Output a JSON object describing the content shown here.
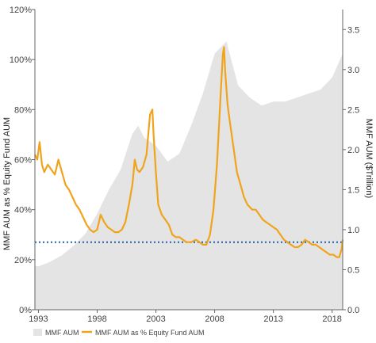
{
  "chart_data": {
    "type": "line",
    "title": "",
    "ylabel_left": "MMF AUM as % Equity Fund AUM",
    "ylabel_right": "MMF AUM ($Trillion)",
    "left_axis": {
      "ylim": [
        0,
        120
      ],
      "ticks": [
        0,
        20,
        40,
        60,
        80,
        100,
        120
      ],
      "tick_labels": [
        "0%",
        "20%",
        "40%",
        "60%",
        "80%",
        "100%",
        "120%"
      ]
    },
    "right_axis": {
      "ylim": [
        0,
        3.75
      ],
      "ticks": [
        0,
        0.5,
        1.0,
        1.5,
        2.0,
        2.5,
        3.0,
        3.5
      ],
      "tick_labels": [
        "0.0",
        "0.5",
        "1.0",
        "1.5",
        "2.0",
        "2.5",
        "3.0",
        "3.5"
      ]
    },
    "x_axis": {
      "xlim": [
        1992.7,
        2018.9
      ],
      "ticks": [
        1993,
        1998,
        2003,
        2008,
        2013,
        2018
      ],
      "tick_labels": [
        "1993",
        "1998",
        "2003",
        "2008",
        "2013",
        "2018"
      ]
    },
    "reference_line": {
      "axis": "left",
      "value": 27,
      "color": "#1f5fa8",
      "style": "dotted"
    },
    "grid": false,
    "legend_position": "bottom-left",
    "series": [
      {
        "name": "MMF AUM",
        "type": "area",
        "axis": "right",
        "color": "#e4e4e4",
        "points": [
          [
            1992.7,
            0.55
          ],
          [
            1993,
            0.54
          ],
          [
            1994,
            0.6
          ],
          [
            1995,
            0.68
          ],
          [
            1996,
            0.8
          ],
          [
            1997,
            0.95
          ],
          [
            1998,
            1.2
          ],
          [
            1999,
            1.5
          ],
          [
            2000,
            1.75
          ],
          [
            2001,
            2.2
          ],
          [
            2001.5,
            2.3
          ],
          [
            2002,
            2.15
          ],
          [
            2003,
            2.05
          ],
          [
            2004,
            1.85
          ],
          [
            2005,
            1.95
          ],
          [
            2006,
            2.3
          ],
          [
            2007,
            2.7
          ],
          [
            2008,
            3.2
          ],
          [
            2009,
            3.35
          ],
          [
            2010,
            2.8
          ],
          [
            2011,
            2.65
          ],
          [
            2012,
            2.55
          ],
          [
            2013,
            2.6
          ],
          [
            2014,
            2.6
          ],
          [
            2015,
            2.65
          ],
          [
            2016,
            2.7
          ],
          [
            2017,
            2.75
          ],
          [
            2018,
            2.9
          ],
          [
            2018.9,
            3.2
          ]
        ]
      },
      {
        "name": "MMF AUM as % Equity Fund AUM",
        "type": "line",
        "axis": "left",
        "color": "#f0a41c",
        "points": [
          [
            1992.7,
            62
          ],
          [
            1992.9,
            60
          ],
          [
            1993.1,
            67
          ],
          [
            1993.3,
            58
          ],
          [
            1993.5,
            55
          ],
          [
            1993.8,
            58
          ],
          [
            1994.1,
            56
          ],
          [
            1994.4,
            54
          ],
          [
            1994.7,
            60
          ],
          [
            1995,
            55
          ],
          [
            1995.3,
            50
          ],
          [
            1995.6,
            48
          ],
          [
            1995.9,
            45
          ],
          [
            1996.2,
            42
          ],
          [
            1996.5,
            40
          ],
          [
            1996.8,
            37
          ],
          [
            1997.1,
            34
          ],
          [
            1997.4,
            32
          ],
          [
            1997.7,
            31
          ],
          [
            1998,
            32
          ],
          [
            1998.3,
            38
          ],
          [
            1998.6,
            35
          ],
          [
            1998.9,
            33
          ],
          [
            1999.2,
            32
          ],
          [
            1999.5,
            31
          ],
          [
            1999.8,
            31
          ],
          [
            2000.1,
            32
          ],
          [
            2000.4,
            35
          ],
          [
            2000.7,
            42
          ],
          [
            2001,
            50
          ],
          [
            2001.2,
            60
          ],
          [
            2001.4,
            56
          ],
          [
            2001.6,
            55
          ],
          [
            2001.9,
            57
          ],
          [
            2002.2,
            62
          ],
          [
            2002.5,
            78
          ],
          [
            2002.7,
            80
          ],
          [
            2002.8,
            70
          ],
          [
            2003,
            55
          ],
          [
            2003.2,
            42
          ],
          [
            2003.5,
            38
          ],
          [
            2003.8,
            36
          ],
          [
            2004.1,
            34
          ],
          [
            2004.4,
            30
          ],
          [
            2004.7,
            29
          ],
          [
            2005,
            29
          ],
          [
            2005.3,
            28
          ],
          [
            2005.6,
            27
          ],
          [
            2006,
            27
          ],
          [
            2006.4,
            28
          ],
          [
            2006.7,
            27
          ],
          [
            2007,
            26
          ],
          [
            2007.3,
            26
          ],
          [
            2007.6,
            30
          ],
          [
            2007.9,
            40
          ],
          [
            2008.2,
            58
          ],
          [
            2008.5,
            85
          ],
          [
            2008.7,
            102
          ],
          [
            2008.8,
            105
          ],
          [
            2008.9,
            95
          ],
          [
            2009.1,
            82
          ],
          [
            2009.3,
            75
          ],
          [
            2009.6,
            65
          ],
          [
            2009.9,
            55
          ],
          [
            2010.2,
            50
          ],
          [
            2010.5,
            45
          ],
          [
            2010.8,
            42
          ],
          [
            2011.2,
            40
          ],
          [
            2011.5,
            40
          ],
          [
            2011.8,
            38
          ],
          [
            2012.1,
            36
          ],
          [
            2012.4,
            35
          ],
          [
            2012.7,
            34
          ],
          [
            2013,
            33
          ],
          [
            2013.3,
            32
          ],
          [
            2013.6,
            30
          ],
          [
            2013.9,
            28
          ],
          [
            2014.2,
            27
          ],
          [
            2014.5,
            26
          ],
          [
            2014.8,
            25
          ],
          [
            2015.1,
            25
          ],
          [
            2015.4,
            26
          ],
          [
            2015.7,
            28
          ],
          [
            2016,
            27
          ],
          [
            2016.3,
            26
          ],
          [
            2016.6,
            26
          ],
          [
            2016.9,
            25
          ],
          [
            2017.2,
            24
          ],
          [
            2017.5,
            23
          ],
          [
            2017.8,
            22
          ],
          [
            2018.1,
            22
          ],
          [
            2018.4,
            21
          ],
          [
            2018.6,
            21
          ],
          [
            2018.8,
            24
          ],
          [
            2018.9,
            28
          ]
        ]
      }
    ]
  }
}
